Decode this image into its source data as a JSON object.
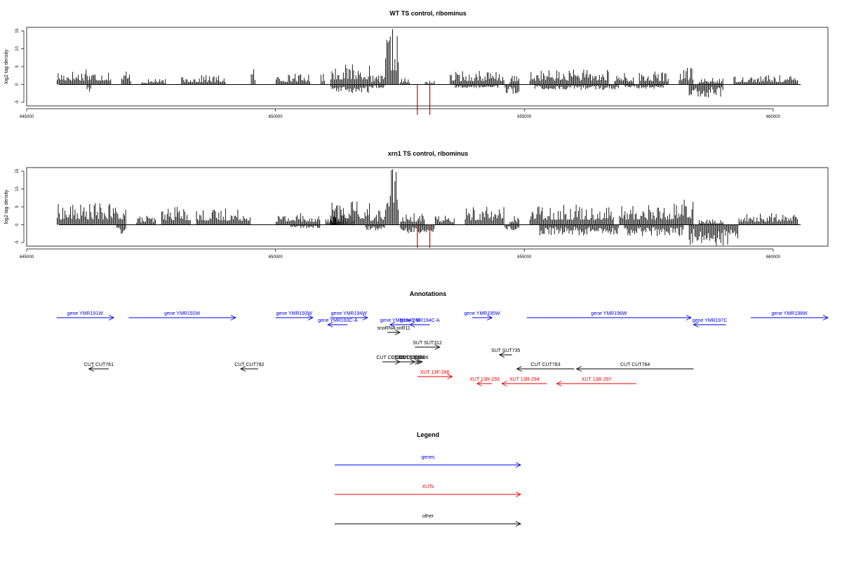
{
  "chart_data": [
    {
      "type": "bar",
      "title": "WT TS control, ribominus",
      "ylabel": "log2 tag density",
      "xlim": [
        645000,
        661100
      ],
      "ylim": [
        -6,
        16
      ],
      "yticks": [
        -5,
        0,
        5,
        10,
        15
      ],
      "xticks": [
        645000,
        650000,
        655000,
        660000
      ],
      "grid": false,
      "bar_color": "#000000",
      "highlight_color": "#cc0000",
      "plus_strand": [
        [
          645600,
          646700,
          4.2
        ],
        [
          646900,
          647100,
          3.6
        ],
        [
          647300,
          647800,
          1.5
        ],
        [
          648100,
          649000,
          2.6
        ],
        [
          649500,
          649600,
          4.3
        ],
        [
          650000,
          650700,
          3.0
        ],
        [
          650900,
          651000,
          3.0
        ],
        [
          651100,
          651900,
          5.6
        ],
        [
          651900,
          652200,
          2.5
        ],
        [
          652200,
          652480,
          15.5
        ],
        [
          652500,
          652700,
          1.8
        ],
        [
          653000,
          653200,
          1.0
        ],
        [
          653500,
          654600,
          3.8
        ],
        [
          654700,
          654900,
          2.4
        ],
        [
          655100,
          656700,
          4.2
        ],
        [
          656800,
          657200,
          3.2
        ],
        [
          657300,
          657900,
          3.6
        ],
        [
          658100,
          658400,
          4.6
        ],
        [
          658500,
          659000,
          1.8
        ],
        [
          659200,
          660500,
          2.6
        ]
      ],
      "minus_strand": [
        [
          646200,
          646300,
          -2.0
        ],
        [
          651100,
          651900,
          -2.4
        ],
        [
          651900,
          652200,
          -1.0
        ],
        [
          653600,
          654500,
          -1.0
        ],
        [
          654600,
          654900,
          -2.6
        ],
        [
          655200,
          656900,
          -1.5
        ],
        [
          657000,
          657800,
          -1.2
        ],
        [
          658300,
          659000,
          -3.6
        ]
      ],
      "highlight_marks": [
        [
          652850,
          -8.5
        ],
        [
          653100,
          -8.5
        ]
      ]
    },
    {
      "type": "bar",
      "title": "xrn1 TS control, ribominus",
      "ylabel": "log2 tag density",
      "xlim": [
        645000,
        661100
      ],
      "ylim": [
        -6,
        16
      ],
      "yticks": [
        -5,
        0,
        5,
        10,
        15
      ],
      "xticks": [
        645000,
        650000,
        655000,
        660000
      ],
      "grid": false,
      "bar_color": "#000000",
      "highlight_color": "#cc0000",
      "plus_strand": [
        [
          645600,
          647000,
          6.0
        ],
        [
          647200,
          647600,
          2.5
        ],
        [
          647700,
          648300,
          5.0
        ],
        [
          648400,
          649500,
          4.5
        ],
        [
          650000,
          650900,
          3.2
        ],
        [
          651000,
          651600,
          2.5
        ],
        [
          651100,
          651900,
          6.5
        ],
        [
          651900,
          652200,
          4.0
        ],
        [
          652200,
          652480,
          15.5
        ],
        [
          652500,
          653000,
          3.2
        ],
        [
          653200,
          653600,
          2.5
        ],
        [
          653800,
          654600,
          5.0
        ],
        [
          654700,
          654900,
          2.4
        ],
        [
          655100,
          656800,
          5.6
        ],
        [
          656900,
          658000,
          5.5
        ],
        [
          658000,
          658400,
          7.0
        ],
        [
          658500,
          659000,
          1.5
        ],
        [
          659300,
          660500,
          3.2
        ]
      ],
      "minus_strand": [
        [
          646800,
          647000,
          -2.5
        ],
        [
          650300,
          650900,
          -1.0
        ],
        [
          651800,
          652200,
          -1.6
        ],
        [
          652500,
          653200,
          -2.4
        ],
        [
          654600,
          654900,
          -1.5
        ],
        [
          655300,
          656900,
          -3.0
        ],
        [
          657000,
          658200,
          -3.2
        ],
        [
          658300,
          659300,
          -5.8
        ]
      ],
      "highlight_marks": [
        [
          652850,
          -6.5
        ],
        [
          653100,
          -6.5
        ]
      ]
    }
  ],
  "annotations": {
    "title": "Annotations",
    "colors": {
      "genes": "#0000ee",
      "XUTs": "#ee0000",
      "other": "#000000"
    },
    "features": [
      {
        "label": "gene YMR191W",
        "start": 645600,
        "end": 646750,
        "strand": "+",
        "category": "genes",
        "row": 0
      },
      {
        "label": "gene YMR192W",
        "start": 647050,
        "end": 649200,
        "strand": "+",
        "category": "genes",
        "row": 0
      },
      {
        "label": "gene YMR193W",
        "start": 650000,
        "end": 650750,
        "strand": "+",
        "category": "genes",
        "row": 0
      },
      {
        "label": "gene YMR194W",
        "start": 651100,
        "end": 651850,
        "strand": "+",
        "category": "genes",
        "row": 0
      },
      {
        "label": "gene YMR193C-A",
        "start": 651050,
        "end": 651450,
        "strand": "-",
        "category": "genes",
        "row": 1
      },
      {
        "label": "gene YMR194C-B",
        "start": 652300,
        "end": 652700,
        "strand": "-",
        "category": "genes",
        "row": 1
      },
      {
        "label": "gene YMR194C-A",
        "start": 652700,
        "end": 653100,
        "strand": "-",
        "category": "genes",
        "row": 1
      },
      {
        "label": "snoRNA snR11",
        "start": 652250,
        "end": 652500,
        "strand": "+",
        "category": "other",
        "row": 2
      },
      {
        "label": "gene YMR195W",
        "start": 653950,
        "end": 654350,
        "strand": "+",
        "category": "genes",
        "row": 0
      },
      {
        "label": "gene YMR196W",
        "start": 655050,
        "end": 658350,
        "strand": "+",
        "category": "genes",
        "row": 0
      },
      {
        "label": "gene YMR197C",
        "start": 658400,
        "end": 659050,
        "strand": "-",
        "category": "genes",
        "row": 1
      },
      {
        "label": "gene YMR198W",
        "start": 659550,
        "end": 661100,
        "strand": "+",
        "category": "genes",
        "row": 0
      },
      {
        "label": "SUT SUT312",
        "start": 652800,
        "end": 653300,
        "strand": "+",
        "category": "other",
        "row": 4
      },
      {
        "label": "SUT SUT735",
        "start": 654500,
        "end": 654750,
        "strand": "-",
        "category": "other",
        "row": 5
      },
      {
        "label": "CUT CUT307",
        "start": 652150,
        "end": 652500,
        "strand": "+",
        "category": "other",
        "row": 6
      },
      {
        "label": "CUT CUT308",
        "start": 652500,
        "end": 652900,
        "strand": "+",
        "category": "other",
        "row": 6
      },
      {
        "label": "CUT CUT309",
        "start": 652450,
        "end": 652800,
        "strand": "+",
        "category": "other",
        "row": 6
      },
      {
        "label": "CUT CUT306",
        "start": 652600,
        "end": 652950,
        "strand": "+",
        "category": "other",
        "row": 6
      },
      {
        "label": "CUT CUT781",
        "start": 646250,
        "end": 646650,
        "strand": "-",
        "category": "other",
        "row": 7
      },
      {
        "label": "CUT CUT782",
        "start": 649300,
        "end": 649650,
        "strand": "-",
        "category": "other",
        "row": 7
      },
      {
        "label": "CUT CUT783",
        "start": 654850,
        "end": 656000,
        "strand": "-",
        "category": "other",
        "row": 7
      },
      {
        "label": "CUT CUT784",
        "start": 656050,
        "end": 658400,
        "strand": "-",
        "category": "other",
        "row": 7
      },
      {
        "label": "XUT 13F-286",
        "start": 652850,
        "end": 653550,
        "strand": "+",
        "category": "XUTs",
        "row": 8
      },
      {
        "label": "XUT 13R-293",
        "start": 654050,
        "end": 654350,
        "strand": "-",
        "category": "XUTs",
        "row": 9
      },
      {
        "label": "XUT 13R-294",
        "start": 654550,
        "end": 655450,
        "strand": "-",
        "category": "XUTs",
        "row": 9
      },
      {
        "label": "XUT 13R-297",
        "start": 655650,
        "end": 657250,
        "strand": "-",
        "category": "XUTs",
        "row": 9
      }
    ]
  },
  "legend": {
    "title": "Legend",
    "entries": [
      {
        "label": "genes",
        "color": "#0000ee"
      },
      {
        "label": "XUTs",
        "color": "#ee0000"
      },
      {
        "label": "other",
        "color": "#000000"
      }
    ]
  }
}
